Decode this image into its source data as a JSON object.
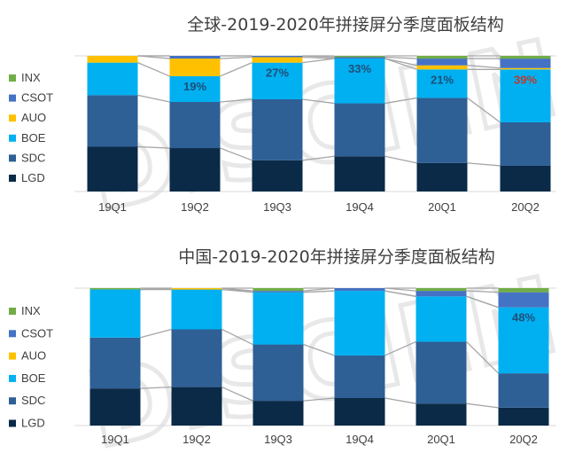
{
  "watermark": "DISCIEN",
  "colors": {
    "INX": "#70ad47",
    "CSOT": "#4472c4",
    "AUO": "#ffc000",
    "BOE": "#00b0f0",
    "SDC": "#2e5f95",
    "LGD": "#0a2a47",
    "connector": "#a6a6a6",
    "label_dark": "#1f4e79",
    "label_red": "#c0392b"
  },
  "chart_data": [
    {
      "type": "bar",
      "stacked": true,
      "percent_stacked": true,
      "title": "全球-2019-2020年拼接屏分季度面板结构",
      "categories": [
        "19Q1",
        "19Q2",
        "19Q3",
        "19Q4",
        "20Q1",
        "20Q2"
      ],
      "ylim": [
        0,
        100
      ],
      "grid": false,
      "legend_position": "left",
      "series": [
        {
          "name": "LGD",
          "values": [
            33,
            32,
            23,
            26,
            21,
            19
          ]
        },
        {
          "name": "SDC",
          "values": [
            38,
            34,
            45,
            39,
            48,
            32
          ]
        },
        {
          "name": "BOE",
          "values": [
            24,
            19,
            27,
            33,
            21,
            39
          ]
        },
        {
          "name": "AUO",
          "values": [
            5,
            13,
            4,
            0,
            3,
            1
          ]
        },
        {
          "name": "CSOT",
          "values": [
            0,
            2,
            1,
            1,
            5,
            7
          ]
        },
        {
          "name": "INX",
          "values": [
            0,
            0,
            0,
            1,
            2,
            2
          ]
        }
      ],
      "data_labels": [
        {
          "category": "19Q2",
          "series": "BOE",
          "text": "19%"
        },
        {
          "category": "19Q3",
          "series": "BOE",
          "text": "27%"
        },
        {
          "category": "19Q4",
          "series": "BOE",
          "text": "33%"
        },
        {
          "category": "20Q1",
          "series": "BOE",
          "text": "21%"
        },
        {
          "category": "20Q2",
          "series": "BOE",
          "text": "39%",
          "highlight": true
        }
      ]
    },
    {
      "type": "bar",
      "stacked": true,
      "percent_stacked": true,
      "title": "中国-2019-2020年拼接屏分季度面板结构",
      "categories": [
        "19Q1",
        "19Q2",
        "19Q3",
        "19Q4",
        "20Q1",
        "20Q2"
      ],
      "ylim": [
        0,
        100
      ],
      "grid": false,
      "legend_position": "left",
      "series": [
        {
          "name": "LGD",
          "values": [
            27,
            28,
            18,
            20,
            16,
            13
          ]
        },
        {
          "name": "SDC",
          "values": [
            37,
            42,
            41,
            31,
            45,
            25
          ]
        },
        {
          "name": "BOE",
          "values": [
            35,
            29,
            38,
            47,
            33,
            48
          ]
        },
        {
          "name": "AUO",
          "values": [
            0,
            1,
            0,
            0,
            0,
            0
          ]
        },
        {
          "name": "CSOT",
          "values": [
            0,
            0,
            1,
            2,
            4,
            11
          ]
        },
        {
          "name": "INX",
          "values": [
            1,
            0,
            2,
            0,
            2,
            3
          ]
        }
      ],
      "data_labels": [
        {
          "category": "20Q2",
          "series": "BOE",
          "text": "48%"
        }
      ]
    }
  ]
}
